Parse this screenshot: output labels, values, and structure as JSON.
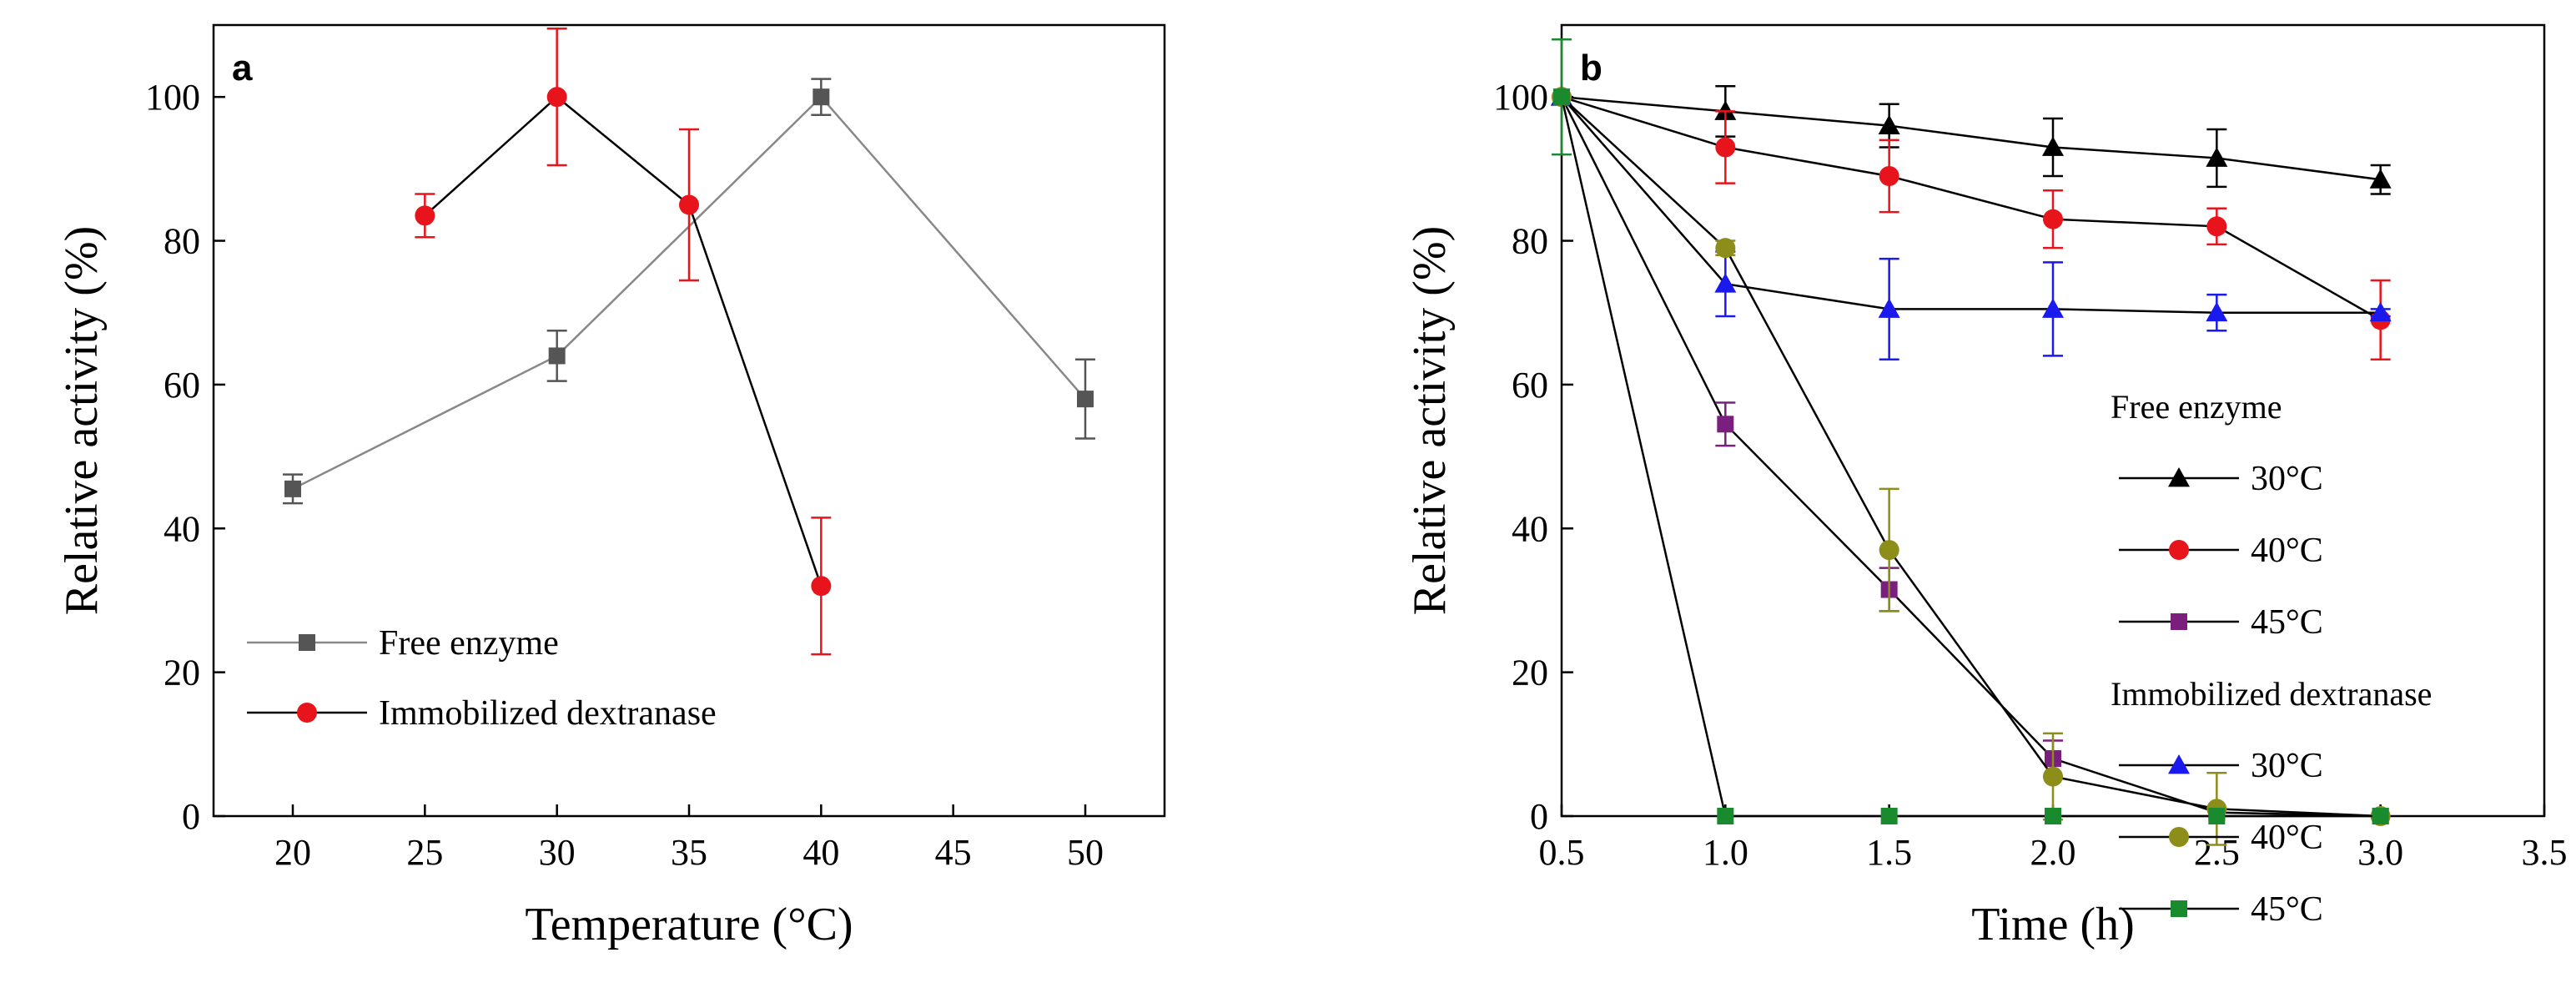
{
  "chart_data": [
    {
      "type": "line",
      "panel_label": "a",
      "xlabel": "Temperature (°C)",
      "ylabel": "Relative activity (%)",
      "xlim": [
        17,
        53
      ],
      "ylim": [
        0,
        110
      ],
      "xticks": [
        20,
        25,
        30,
        35,
        40,
        45,
        50
      ],
      "yticks": [
        0,
        20,
        40,
        60,
        80,
        100
      ],
      "legend_position": "bottom-left",
      "series": [
        {
          "name": "Free enzyme",
          "color": "#555555",
          "marker": "square",
          "x": [
            20,
            30,
            40,
            50
          ],
          "y": [
            45.5,
            64,
            100,
            58
          ],
          "err": [
            2,
            3.5,
            2.5,
            5.5
          ]
        },
        {
          "name": "Immobilized dextranase",
          "color": "#e8141b",
          "marker": "circle",
          "x": [
            25,
            30,
            35,
            40
          ],
          "y": [
            83.5,
            100,
            85,
            32
          ],
          "err": [
            3,
            9.5,
            10.5,
            9.5
          ]
        }
      ]
    },
    {
      "type": "line",
      "panel_label": "b",
      "xlabel": "Time (h)",
      "ylabel": "Relative activity (%)",
      "xlim": [
        0.5,
        3.5
      ],
      "ylim": [
        0,
        110
      ],
      "xticks": [
        "0.5",
        "1.0",
        "1.5",
        "2.0",
        "2.5",
        "3.0",
        "3.5"
      ],
      "yticks": [
        0,
        20,
        40,
        60,
        80,
        100
      ],
      "legend_position": "right",
      "legend_groups": [
        "Free enzyme",
        "Immobilized dextranase"
      ],
      "series": [
        {
          "name": "30°C",
          "group": "Free enzyme",
          "color": "#000000",
          "marker": "triangle",
          "x": [
            0.5,
            1.0,
            1.5,
            2.0,
            2.5,
            3.0
          ],
          "y": [
            100,
            98,
            96,
            93,
            91.5,
            88.5
          ],
          "err": [
            0,
            3.5,
            3,
            4,
            4,
            2
          ]
        },
        {
          "name": "40°C",
          "group": "Free enzyme",
          "color": "#e8141b",
          "marker": "circle",
          "x": [
            0.5,
            1.0,
            1.5,
            2.0,
            2.5,
            3.0
          ],
          "y": [
            100,
            93,
            89,
            83,
            82,
            69
          ],
          "err": [
            0,
            5,
            5,
            4,
            2.5,
            5.5
          ]
        },
        {
          "name": "45°C",
          "group": "Free enzyme",
          "color": "#7a1f7e",
          "marker": "square",
          "x": [
            0.5,
            1.0,
            1.5,
            2.0,
            2.5,
            3.0
          ],
          "y": [
            100,
            54.5,
            31.5,
            8,
            0.5,
            0
          ],
          "err": [
            0,
            3,
            3,
            2.5,
            0.5,
            0
          ]
        },
        {
          "name": "30°C",
          "group": "Immobilized dextranase",
          "color": "#1a1aee",
          "marker": "triangle",
          "x": [
            0.5,
            1.0,
            1.5,
            2.0,
            2.5,
            3.0
          ],
          "y": [
            100,
            74,
            70.5,
            70.5,
            70,
            70
          ],
          "err": [
            0,
            4.5,
            7,
            6.5,
            2.5,
            0.5
          ]
        },
        {
          "name": "40°C",
          "group": "Immobilized dextranase",
          "color": "#8d8d1a",
          "marker": "circle",
          "x": [
            0.5,
            1.0,
            1.5,
            2.0,
            2.5,
            3.0
          ],
          "y": [
            100,
            79,
            37,
            5.5,
            1,
            0
          ],
          "err": [
            0,
            1,
            8.5,
            6,
            5,
            0
          ]
        },
        {
          "name": "45°C",
          "group": "Immobilized dextranase",
          "color": "#1a8a2e",
          "marker": "square",
          "x": [
            0.5,
            1.0,
            1.5,
            2.0,
            2.5,
            3.0
          ],
          "y": [
            100,
            0,
            0,
            0,
            0,
            0
          ],
          "err": [
            8,
            0,
            0,
            0,
            0,
            0
          ]
        }
      ]
    }
  ]
}
